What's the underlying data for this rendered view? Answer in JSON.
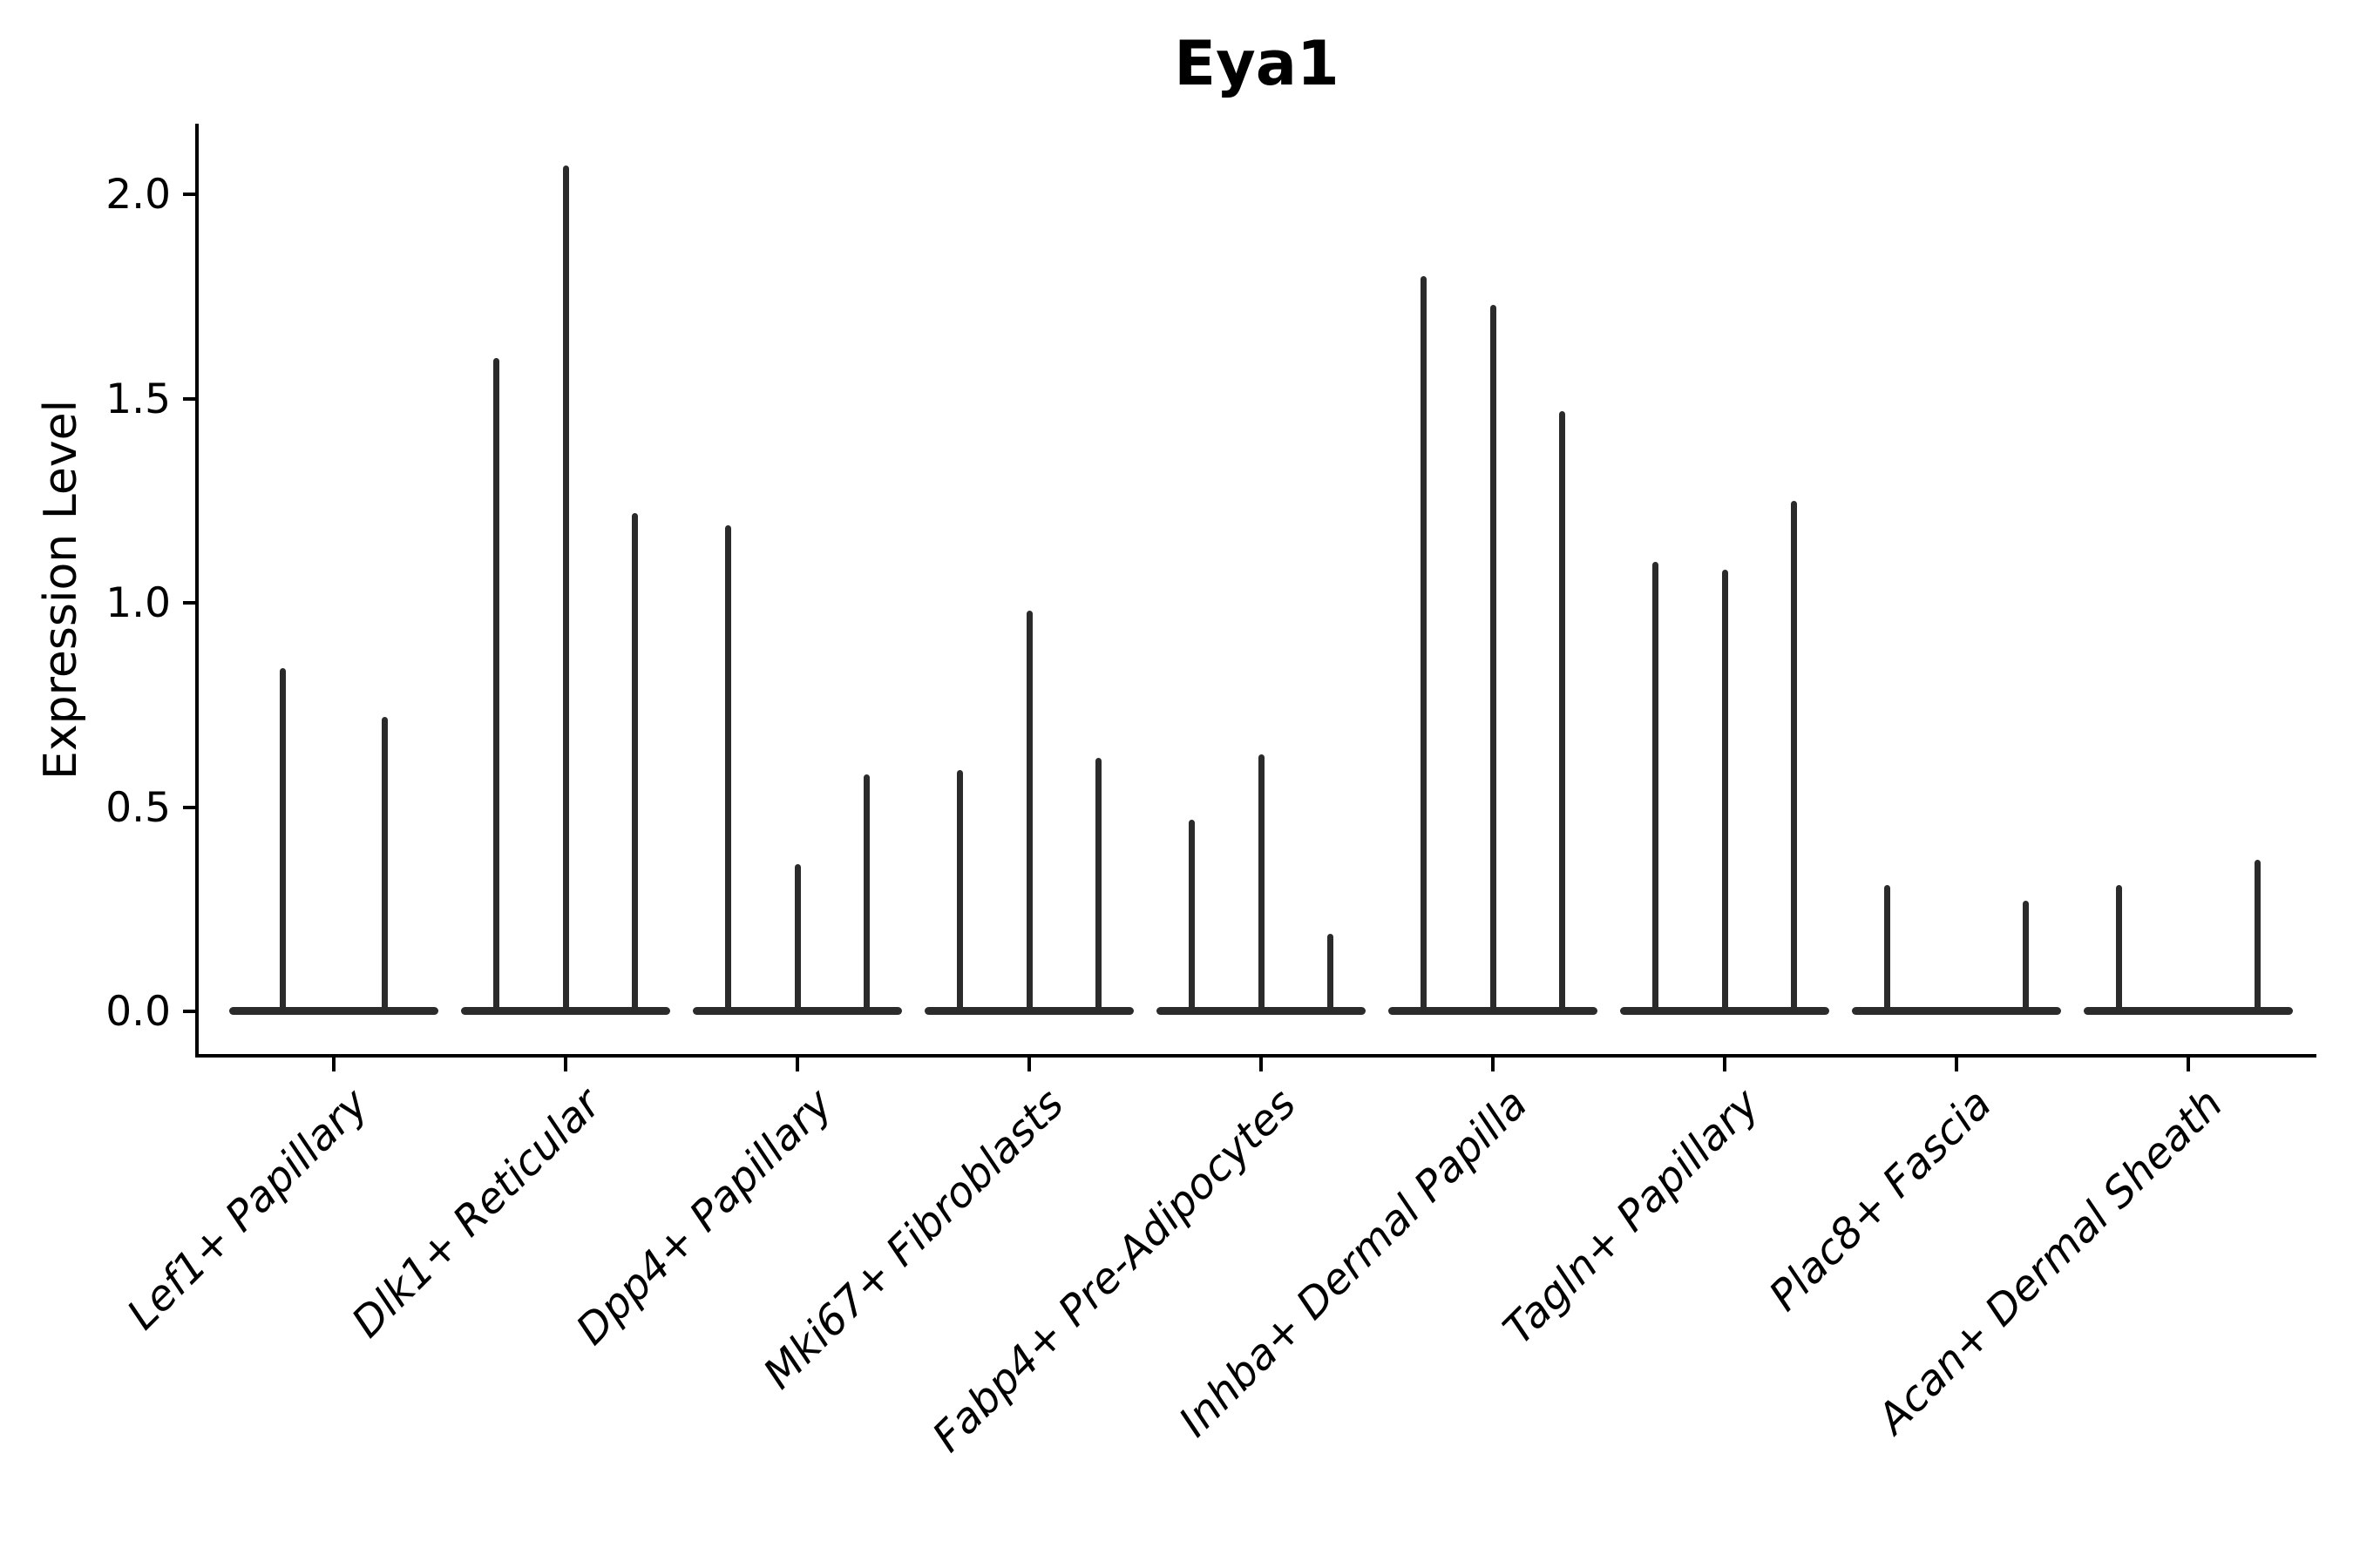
{
  "chart_data": {
    "type": "violin",
    "style": "needle-violin (flat base at 0 with thin density spike to max)",
    "title": "Eya1",
    "xlabel": "",
    "ylabel": "Expression Level",
    "ylim": [
      -0.11,
      2.17
    ],
    "yticks": [
      0.0,
      0.5,
      1.0,
      1.5,
      2.0
    ],
    "ytick_labels": [
      "0.0",
      "0.5",
      "1.0",
      "1.5",
      "2.0"
    ],
    "grid": false,
    "legend": "none",
    "violin_color": "#2b2b2b",
    "axis_color": "#000000",
    "background_color": "#ffffff",
    "categories": [
      "Lef1+ Papillary",
      "Dlk1+ Reticular",
      "Dpp4+ Papillary",
      "Mki67+ Fibroblasts",
      "Fabp4+ Pre-Adipocytes",
      "Inhba+ Dermal Papilla",
      "Tagln+ Papillary",
      "Plac8+ Fascia",
      "Acan+ Dermal Sheath"
    ],
    "groups": [
      {
        "label": "Lef1+ Papillary",
        "base_halfwidth": 0.45,
        "violins": [
          {
            "offset": -0.22,
            "max": 0.84
          },
          {
            "offset": 0.22,
            "max": 0.72
          }
        ]
      },
      {
        "label": "Dlk1+ Reticular",
        "base_halfwidth": 0.45,
        "violins": [
          {
            "offset": -0.3,
            "max": 1.6
          },
          {
            "offset": 0.0,
            "max": 2.07
          },
          {
            "offset": 0.3,
            "max": 1.22
          }
        ]
      },
      {
        "label": "Dpp4+ Papillary",
        "base_halfwidth": 0.45,
        "violins": [
          {
            "offset": -0.3,
            "max": 1.19
          },
          {
            "offset": 0.0,
            "max": 0.36
          },
          {
            "offset": 0.3,
            "max": 0.58
          }
        ]
      },
      {
        "label": "Mki67+ Fibroblasts",
        "base_halfwidth": 0.45,
        "violins": [
          {
            "offset": -0.3,
            "max": 0.59
          },
          {
            "offset": 0.0,
            "max": 0.98
          },
          {
            "offset": 0.3,
            "max": 0.62
          }
        ]
      },
      {
        "label": "Fabp4+ Pre-Adipocytes",
        "base_halfwidth": 0.45,
        "violins": [
          {
            "offset": -0.3,
            "max": 0.47
          },
          {
            "offset": 0.0,
            "max": 0.63
          },
          {
            "offset": 0.3,
            "max": 0.19
          }
        ]
      },
      {
        "label": "Inhba+ Dermal Papilla",
        "base_halfwidth": 0.45,
        "violins": [
          {
            "offset": -0.3,
            "max": 1.8
          },
          {
            "offset": 0.0,
            "max": 1.73
          },
          {
            "offset": 0.3,
            "max": 1.47
          }
        ]
      },
      {
        "label": "Tagln+ Papillary",
        "base_halfwidth": 0.45,
        "violins": [
          {
            "offset": -0.3,
            "max": 1.1
          },
          {
            "offset": 0.0,
            "max": 1.08
          },
          {
            "offset": 0.3,
            "max": 1.25
          }
        ]
      },
      {
        "label": "Plac8+ Fascia",
        "base_halfwidth": 0.45,
        "violins": [
          {
            "offset": -0.3,
            "max": 0.31
          },
          {
            "offset": 0.3,
            "max": 0.27
          }
        ]
      },
      {
        "label": "Acan+ Dermal Sheath",
        "base_halfwidth": 0.45,
        "violins": [
          {
            "offset": -0.3,
            "max": 0.31
          },
          {
            "offset": 0.3,
            "max": 0.37
          }
        ]
      }
    ]
  }
}
